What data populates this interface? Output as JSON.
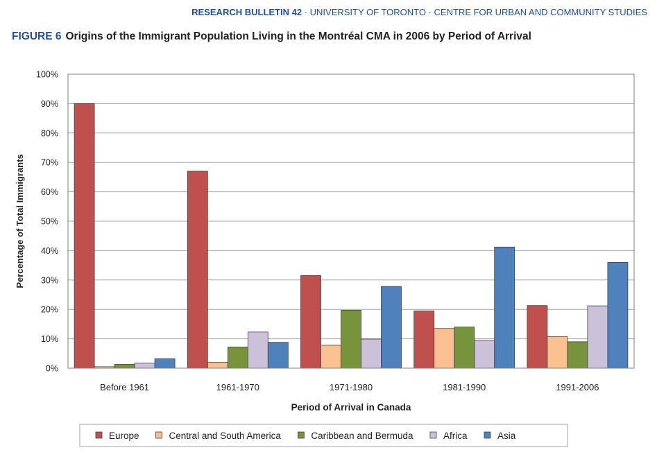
{
  "header": {
    "bulletin": "RESEARCH BULLETIN 42",
    "sep": " · ",
    "university": "UNIVERSITY OF TORONTO",
    "centre": "CENTRE FOR URBAN AND COMMUNITY STUDIES"
  },
  "figure": {
    "label": "FIGURE 6",
    "title": "Origins of the Immigrant Population Living in the Montréal CMA in 2006 by Period of Arrival"
  },
  "chart_data": {
    "type": "bar",
    "title": "Origins of the Immigrant Population Living in the Montréal CMA in 2006 by Period of Arrival",
    "xlabel": "Period of Arrival in Canada",
    "ylabel": "Percentage of Total Immigrants",
    "ylim": [
      0,
      100
    ],
    "yticks": [
      "0%",
      "10%",
      "20%",
      "30%",
      "40%",
      "50%",
      "60%",
      "70%",
      "80%",
      "90%",
      "100%"
    ],
    "grid": true,
    "legend_position": "bottom",
    "categories": [
      "Before 1961",
      "1961-1970",
      "1971-1980",
      "1981-1990",
      "1991-2006"
    ],
    "series": [
      {
        "name": "Europe",
        "color": "#c0504d",
        "values": [
          90,
          67,
          31.5,
          19.5,
          21.3
        ]
      },
      {
        "name": "Central and South America",
        "color": "#fac090",
        "values": [
          0.5,
          2,
          7.8,
          13.5,
          10.7
        ]
      },
      {
        "name": "Caribbean and Bermuda",
        "color": "#77933c",
        "values": [
          1.3,
          7.2,
          19.7,
          14,
          9
        ]
      },
      {
        "name": "Africa",
        "color": "#ccc1da",
        "values": [
          1.7,
          12.3,
          9.9,
          9.5,
          21.2
        ]
      },
      {
        "name": "Asia",
        "color": "#4f81bd",
        "values": [
          3.2,
          8.8,
          27.8,
          41.2,
          36
        ]
      }
    ]
  }
}
